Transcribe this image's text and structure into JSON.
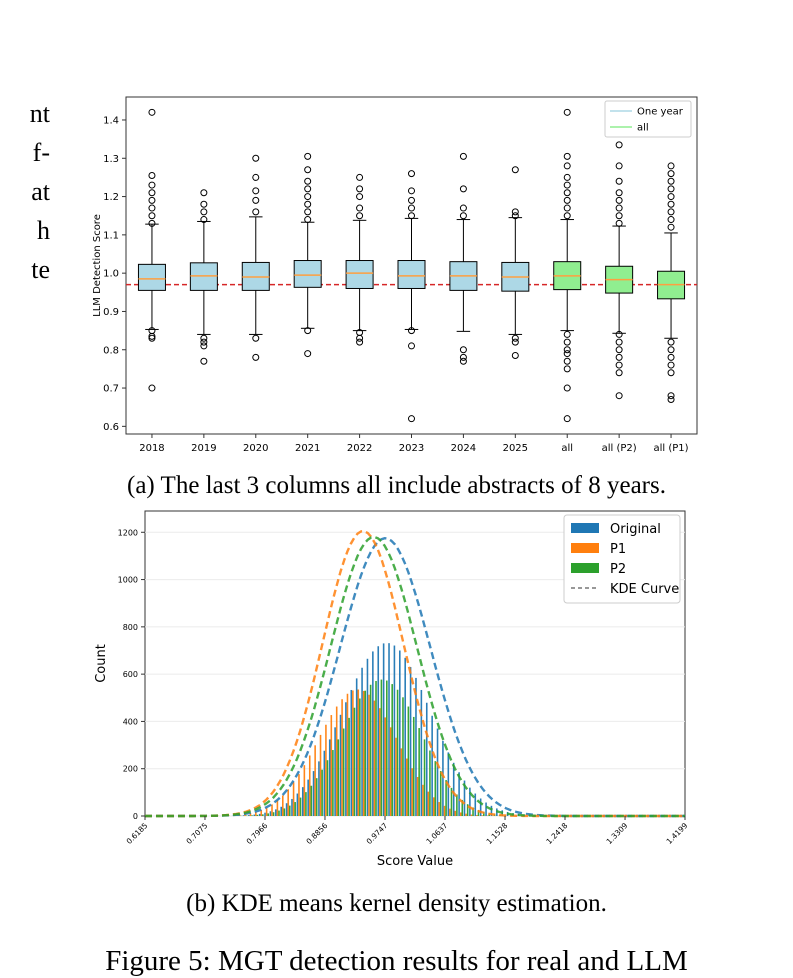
{
  "side_text": [
    "nt",
    "f-",
    "at",
    "h",
    "te"
  ],
  "caption_a": "(a) The last 3 columns all include abstracts of 8 years.",
  "caption_b": "(b) KDE means kernel density estimation.",
  "figure_caption": "Figure 5: MGT detection results for real and LLM",
  "colors": {
    "one_year": "#add8e6",
    "all": "#90ee90",
    "median": "#ff9f40",
    "threshold": "#d62728",
    "original": "#1f77b4",
    "p1": "#ff7f0e",
    "p2": "#2ca02c"
  },
  "chart_data": [
    {
      "type": "box",
      "title": "",
      "xlabel": "",
      "ylabel": "LLM Detection Score",
      "ylim": [
        0.58,
        1.46
      ],
      "yticks": [
        "0.6",
        "0.7",
        "0.8",
        "0.9",
        "1.0",
        "1.1",
        "1.2",
        "1.3",
        "1.4"
      ],
      "threshold": 0.97,
      "legend": {
        "placement": "top-right",
        "entries": [
          "One year",
          "all"
        ]
      },
      "categories": [
        "2018",
        "2019",
        "2020",
        "2021",
        "2022",
        "2023",
        "2024",
        "2025",
        "all",
        "all (P2)",
        "all (P1)"
      ],
      "boxes": [
        {
          "q1": 0.955,
          "median": 0.985,
          "q3": 1.023,
          "whislo": 0.853,
          "whishi": 1.128,
          "group": "one_year",
          "outliers": [
            0.7,
            0.83,
            0.835,
            0.85,
            1.13,
            1.15,
            1.17,
            1.19,
            1.21,
            1.23,
            1.255,
            1.42
          ]
        },
        {
          "q1": 0.955,
          "median": 0.993,
          "q3": 1.027,
          "whislo": 0.84,
          "whishi": 1.135,
          "group": "one_year",
          "outliers": [
            0.77,
            0.81,
            0.82,
            0.83,
            1.14,
            1.16,
            1.18,
            1.21
          ]
        },
        {
          "q1": 0.955,
          "median": 0.99,
          "q3": 1.028,
          "whislo": 0.84,
          "whishi": 1.147,
          "group": "one_year",
          "outliers": [
            0.78,
            0.83,
            1.16,
            1.19,
            1.215,
            1.25,
            1.3
          ]
        },
        {
          "q1": 0.963,
          "median": 0.995,
          "q3": 1.033,
          "whislo": 0.856,
          "whishi": 1.133,
          "group": "one_year",
          "outliers": [
            0.79,
            0.85,
            1.14,
            1.16,
            1.18,
            1.2,
            1.22,
            1.24,
            1.27,
            1.305
          ]
        },
        {
          "q1": 0.96,
          "median": 1.0,
          "q3": 1.033,
          "whislo": 0.85,
          "whishi": 1.138,
          "group": "one_year",
          "outliers": [
            0.82,
            0.83,
            0.845,
            1.15,
            1.17,
            1.2,
            1.22,
            1.25
          ]
        },
        {
          "q1": 0.96,
          "median": 0.993,
          "q3": 1.033,
          "whislo": 0.853,
          "whishi": 1.143,
          "group": "one_year",
          "outliers": [
            0.62,
            0.81,
            0.85,
            1.15,
            1.17,
            1.19,
            1.215,
            1.26
          ]
        },
        {
          "q1": 0.955,
          "median": 0.993,
          "q3": 1.03,
          "whislo": 0.848,
          "whishi": 1.14,
          "group": "one_year",
          "outliers": [
            0.77,
            0.78,
            0.8,
            1.15,
            1.17,
            1.22,
            1.305
          ]
        },
        {
          "q1": 0.953,
          "median": 0.99,
          "q3": 1.028,
          "whislo": 0.84,
          "whishi": 1.145,
          "group": "one_year",
          "outliers": [
            0.785,
            0.82,
            0.83,
            1.15,
            1.16,
            1.27
          ]
        },
        {
          "q1": 0.957,
          "median": 0.993,
          "q3": 1.03,
          "whislo": 0.85,
          "whishi": 1.14,
          "group": "all",
          "outliers": [
            0.62,
            0.7,
            0.75,
            0.77,
            0.79,
            0.8,
            0.82,
            0.84,
            1.15,
            1.17,
            1.19,
            1.21,
            1.23,
            1.25,
            1.28,
            1.305,
            1.42
          ]
        },
        {
          "q1": 0.948,
          "median": 0.983,
          "q3": 1.018,
          "whislo": 0.843,
          "whishi": 1.123,
          "group": "all",
          "outliers": [
            0.68,
            0.74,
            0.76,
            0.78,
            0.8,
            0.82,
            0.84,
            1.13,
            1.15,
            1.17,
            1.19,
            1.21,
            1.24,
            1.28,
            1.335
          ]
        },
        {
          "q1": 0.933,
          "median": 0.97,
          "q3": 1.005,
          "whislo": 0.83,
          "whishi": 1.105,
          "group": "all",
          "outliers": [
            0.67,
            0.68,
            0.74,
            0.76,
            0.78,
            0.8,
            0.82,
            1.12,
            1.14,
            1.16,
            1.18,
            1.2,
            1.22,
            1.24,
            1.26,
            1.28
          ]
        }
      ]
    },
    {
      "type": "bar",
      "title": "",
      "xlabel": "Score Value",
      "ylabel": "Count",
      "ylim": [
        0,
        1290
      ],
      "xlim": [
        0.6185,
        1.4199
      ],
      "yticks": [
        "0",
        "200",
        "400",
        "600",
        "800",
        "1000",
        "1200"
      ],
      "xticks": [
        "0.6185",
        "0.7075",
        "0.7966",
        "0.8856",
        "0.9747",
        "1.0637",
        "1.1528",
        "1.2418",
        "1.3309",
        "1.4199"
      ],
      "legend": {
        "placement": "top-right",
        "entries": [
          "Original",
          "P1",
          "P2",
          "KDE Curve"
        ]
      },
      "bin_centers": [
        0.623,
        0.631,
        0.639,
        0.647,
        0.655,
        0.663,
        0.671,
        0.679,
        0.687,
        0.695,
        0.703,
        0.711,
        0.719,
        0.727,
        0.735,
        0.743,
        0.751,
        0.759,
        0.767,
        0.775,
        0.783,
        0.791,
        0.799,
        0.807,
        0.815,
        0.823,
        0.831,
        0.839,
        0.847,
        0.855,
        0.863,
        0.871,
        0.879,
        0.887,
        0.895,
        0.903,
        0.911,
        0.919,
        0.927,
        0.935,
        0.943,
        0.951,
        0.959,
        0.967,
        0.975,
        0.983,
        0.991,
        0.999,
        1.007,
        1.015,
        1.023,
        1.031,
        1.039,
        1.047,
        1.055,
        1.063,
        1.071,
        1.079,
        1.087,
        1.095,
        1.103,
        1.111,
        1.119,
        1.127,
        1.135,
        1.143,
        1.151,
        1.159,
        1.167,
        1.175,
        1.183,
        1.191,
        1.199,
        1.207,
        1.215,
        1.223,
        1.231,
        1.239,
        1.247,
        1.255,
        1.263,
        1.271,
        1.279,
        1.287,
        1.295,
        1.303,
        1.311,
        1.319,
        1.327,
        1.335,
        1.343,
        1.351,
        1.359,
        1.367,
        1.375,
        1.383,
        1.391,
        1.399,
        1.407,
        1.415
      ],
      "series": [
        {
          "name": "Original",
          "values": [
            1,
            0,
            0,
            0,
            0,
            0,
            0,
            0,
            0,
            0,
            1,
            0,
            0,
            0,
            0,
            1,
            1,
            2,
            3,
            4,
            6,
            9,
            14,
            20,
            28,
            39,
            54,
            72,
            95,
            122,
            154,
            190,
            231,
            276,
            324,
            375,
            428,
            481,
            533,
            582,
            627,
            665,
            696,
            718,
            730,
            731,
            721,
            700,
            669,
            630,
            584,
            533,
            479,
            424,
            370,
            318,
            269,
            225,
            185,
            150,
            120,
            95,
            74,
            57,
            43,
            32,
            24,
            17,
            12,
            9,
            6,
            4,
            3,
            2,
            1,
            1,
            1,
            0,
            0,
            0,
            0,
            0,
            0,
            0,
            0,
            0,
            0,
            0,
            0,
            0,
            0,
            0,
            0,
            0,
            0,
            0,
            0,
            0,
            0,
            1
          ]
        },
        {
          "name": "P1",
          "values": [
            0,
            0,
            0,
            0,
            0,
            0,
            0,
            0,
            0,
            0,
            0,
            0,
            0,
            1,
            1,
            2,
            3,
            5,
            8,
            12,
            17,
            25,
            35,
            49,
            66,
            87,
            113,
            143,
            177,
            215,
            256,
            299,
            343,
            386,
            427,
            463,
            494,
            517,
            531,
            535,
            529,
            513,
            488,
            456,
            417,
            375,
            331,
            286,
            243,
            202,
            165,
            132,
            103,
            79,
            59,
            43,
            31,
            22,
            15,
            10,
            6,
            4,
            3,
            2,
            1,
            1,
            0,
            0,
            0,
            0,
            0,
            0,
            0,
            0,
            0,
            0,
            0,
            0,
            0,
            0,
            0,
            0,
            0,
            0,
            0,
            0,
            0,
            0,
            0,
            0,
            0,
            0,
            0,
            0,
            0,
            0,
            0,
            0,
            0,
            0
          ]
        },
        {
          "name": "P2",
          "values": [
            0,
            0,
            0,
            0,
            0,
            0,
            0,
            0,
            0,
            0,
            0,
            0,
            0,
            0,
            0,
            0,
            1,
            1,
            2,
            3,
            5,
            7,
            11,
            16,
            23,
            32,
            44,
            59,
            78,
            101,
            128,
            160,
            196,
            236,
            279,
            324,
            370,
            415,
            458,
            497,
            530,
            555,
            571,
            577,
            573,
            558,
            534,
            502,
            463,
            419,
            372,
            324,
            277,
            232,
            190,
            152,
            119,
            91,
            68,
            50,
            36,
            25,
            17,
            11,
            7,
            5,
            3,
            2,
            1,
            1,
            0,
            0,
            0,
            0,
            0,
            0,
            0,
            0,
            0,
            0,
            0,
            0,
            0,
            0,
            0,
            0,
            0,
            0,
            0,
            0,
            0,
            0,
            0,
            0,
            0,
            0,
            0,
            0,
            0,
            0
          ]
        }
      ],
      "kde": {
        "original_peak": 1175,
        "original_mean": 0.975,
        "original_sd": 0.067,
        "p1_peak": 1205,
        "p1_mean": 0.942,
        "p1_sd": 0.06,
        "p2_peak": 1180,
        "p2_mean": 0.958,
        "p2_sd": 0.064
      }
    }
  ]
}
